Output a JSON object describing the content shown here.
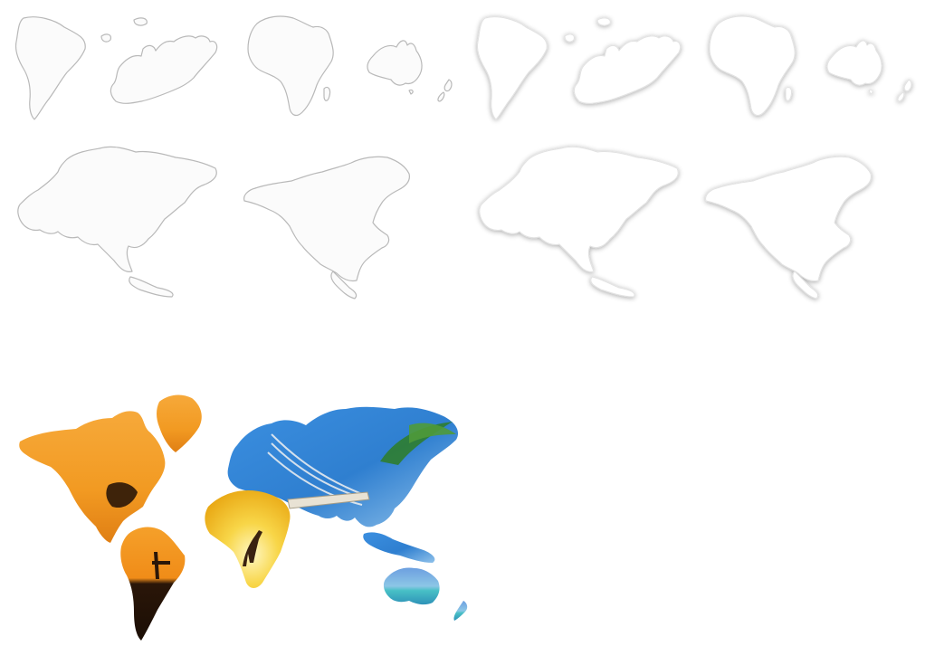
{
  "colors": {
    "background": "#ffffff",
    "outline_stroke": "#b9b9b9",
    "outline_fill": "#fbfbfb",
    "soft_shadow": "#d6d6d6",
    "sunset_orange": "#f29a22",
    "sky_blue": "#2f7fd0",
    "desert_yellow": "#f4c21e",
    "sea_turquoise": "#5fb8d8",
    "silhouette": "#2a1608"
  },
  "shape_sets": [
    {
      "style": "outline",
      "shapes": [
        "south-america",
        "europe",
        "africa",
        "australia",
        "new-zealand",
        "asia",
        "north-america"
      ]
    },
    {
      "style": "soft-shadow",
      "shapes": [
        "south-america",
        "europe",
        "africa",
        "australia",
        "new-zealand",
        "asia",
        "north-america"
      ]
    }
  ],
  "photo_world_map": {
    "regions": [
      {
        "name": "north-america",
        "theme": "sunset"
      },
      {
        "name": "greenland",
        "theme": "sunset"
      },
      {
        "name": "south-america",
        "theme": "sunset-silhouette"
      },
      {
        "name": "eurasia",
        "theme": "sky-hammock"
      },
      {
        "name": "africa",
        "theme": "desert-giraffe"
      },
      {
        "name": "australia",
        "theme": "ocean"
      },
      {
        "name": "new-zealand",
        "theme": "ocean"
      }
    ]
  }
}
